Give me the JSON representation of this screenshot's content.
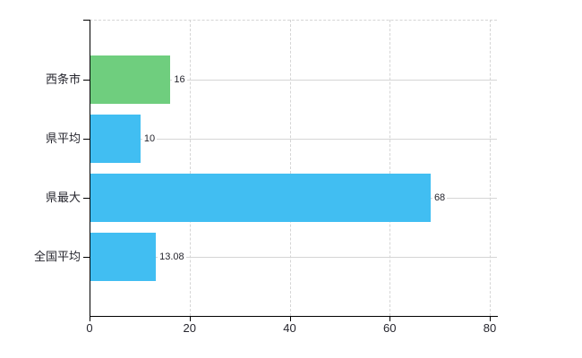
{
  "chart_data": {
    "type": "bar",
    "orientation": "horizontal",
    "title": "",
    "categories": [
      "西条市",
      "県平均",
      "県最大",
      "全国平均"
    ],
    "values": [
      16,
      10,
      68,
      13.08
    ],
    "value_labels": [
      "16",
      "10",
      "68",
      "13.08"
    ],
    "bar_colors": [
      "#6fce7e",
      "#41bef2",
      "#41bef2",
      "#41bef2"
    ],
    "xlim": [
      0,
      80
    ],
    "xticks": [
      0,
      20,
      40,
      60,
      80
    ],
    "xtick_labels": [
      "0",
      "20",
      "40",
      "60",
      "80"
    ],
    "grid": true,
    "legend": false
  },
  "colors": {
    "green_bar": "#6fce7e",
    "blue_bar": "#41bef2",
    "gridline": "#d5d5d5",
    "axis": "#000000",
    "text": "#26262e",
    "background": "#ffffff"
  }
}
